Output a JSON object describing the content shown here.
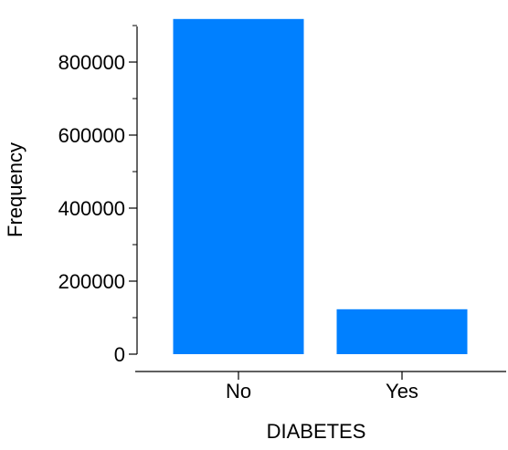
{
  "chart_data": {
    "type": "bar",
    "title": "",
    "xlabel": "DIABETES",
    "ylabel": "Frequency",
    "categories": [
      "No",
      "Yes"
    ],
    "values": [
      918000,
      123000
    ],
    "ylim": [
      0,
      900000
    ],
    "yticks": [
      {
        "value": 0,
        "label": "0"
      },
      {
        "value": 200000,
        "label": "200000"
      },
      {
        "value": 400000,
        "label": "400000"
      },
      {
        "value": 600000,
        "label": "600000"
      },
      {
        "value": 800000,
        "label": "800000"
      }
    ],
    "minor_ticks": [
      100000,
      300000,
      500000,
      700000,
      900000
    ],
    "bar_color": "#0080FF",
    "grid": false,
    "legend": "none"
  }
}
